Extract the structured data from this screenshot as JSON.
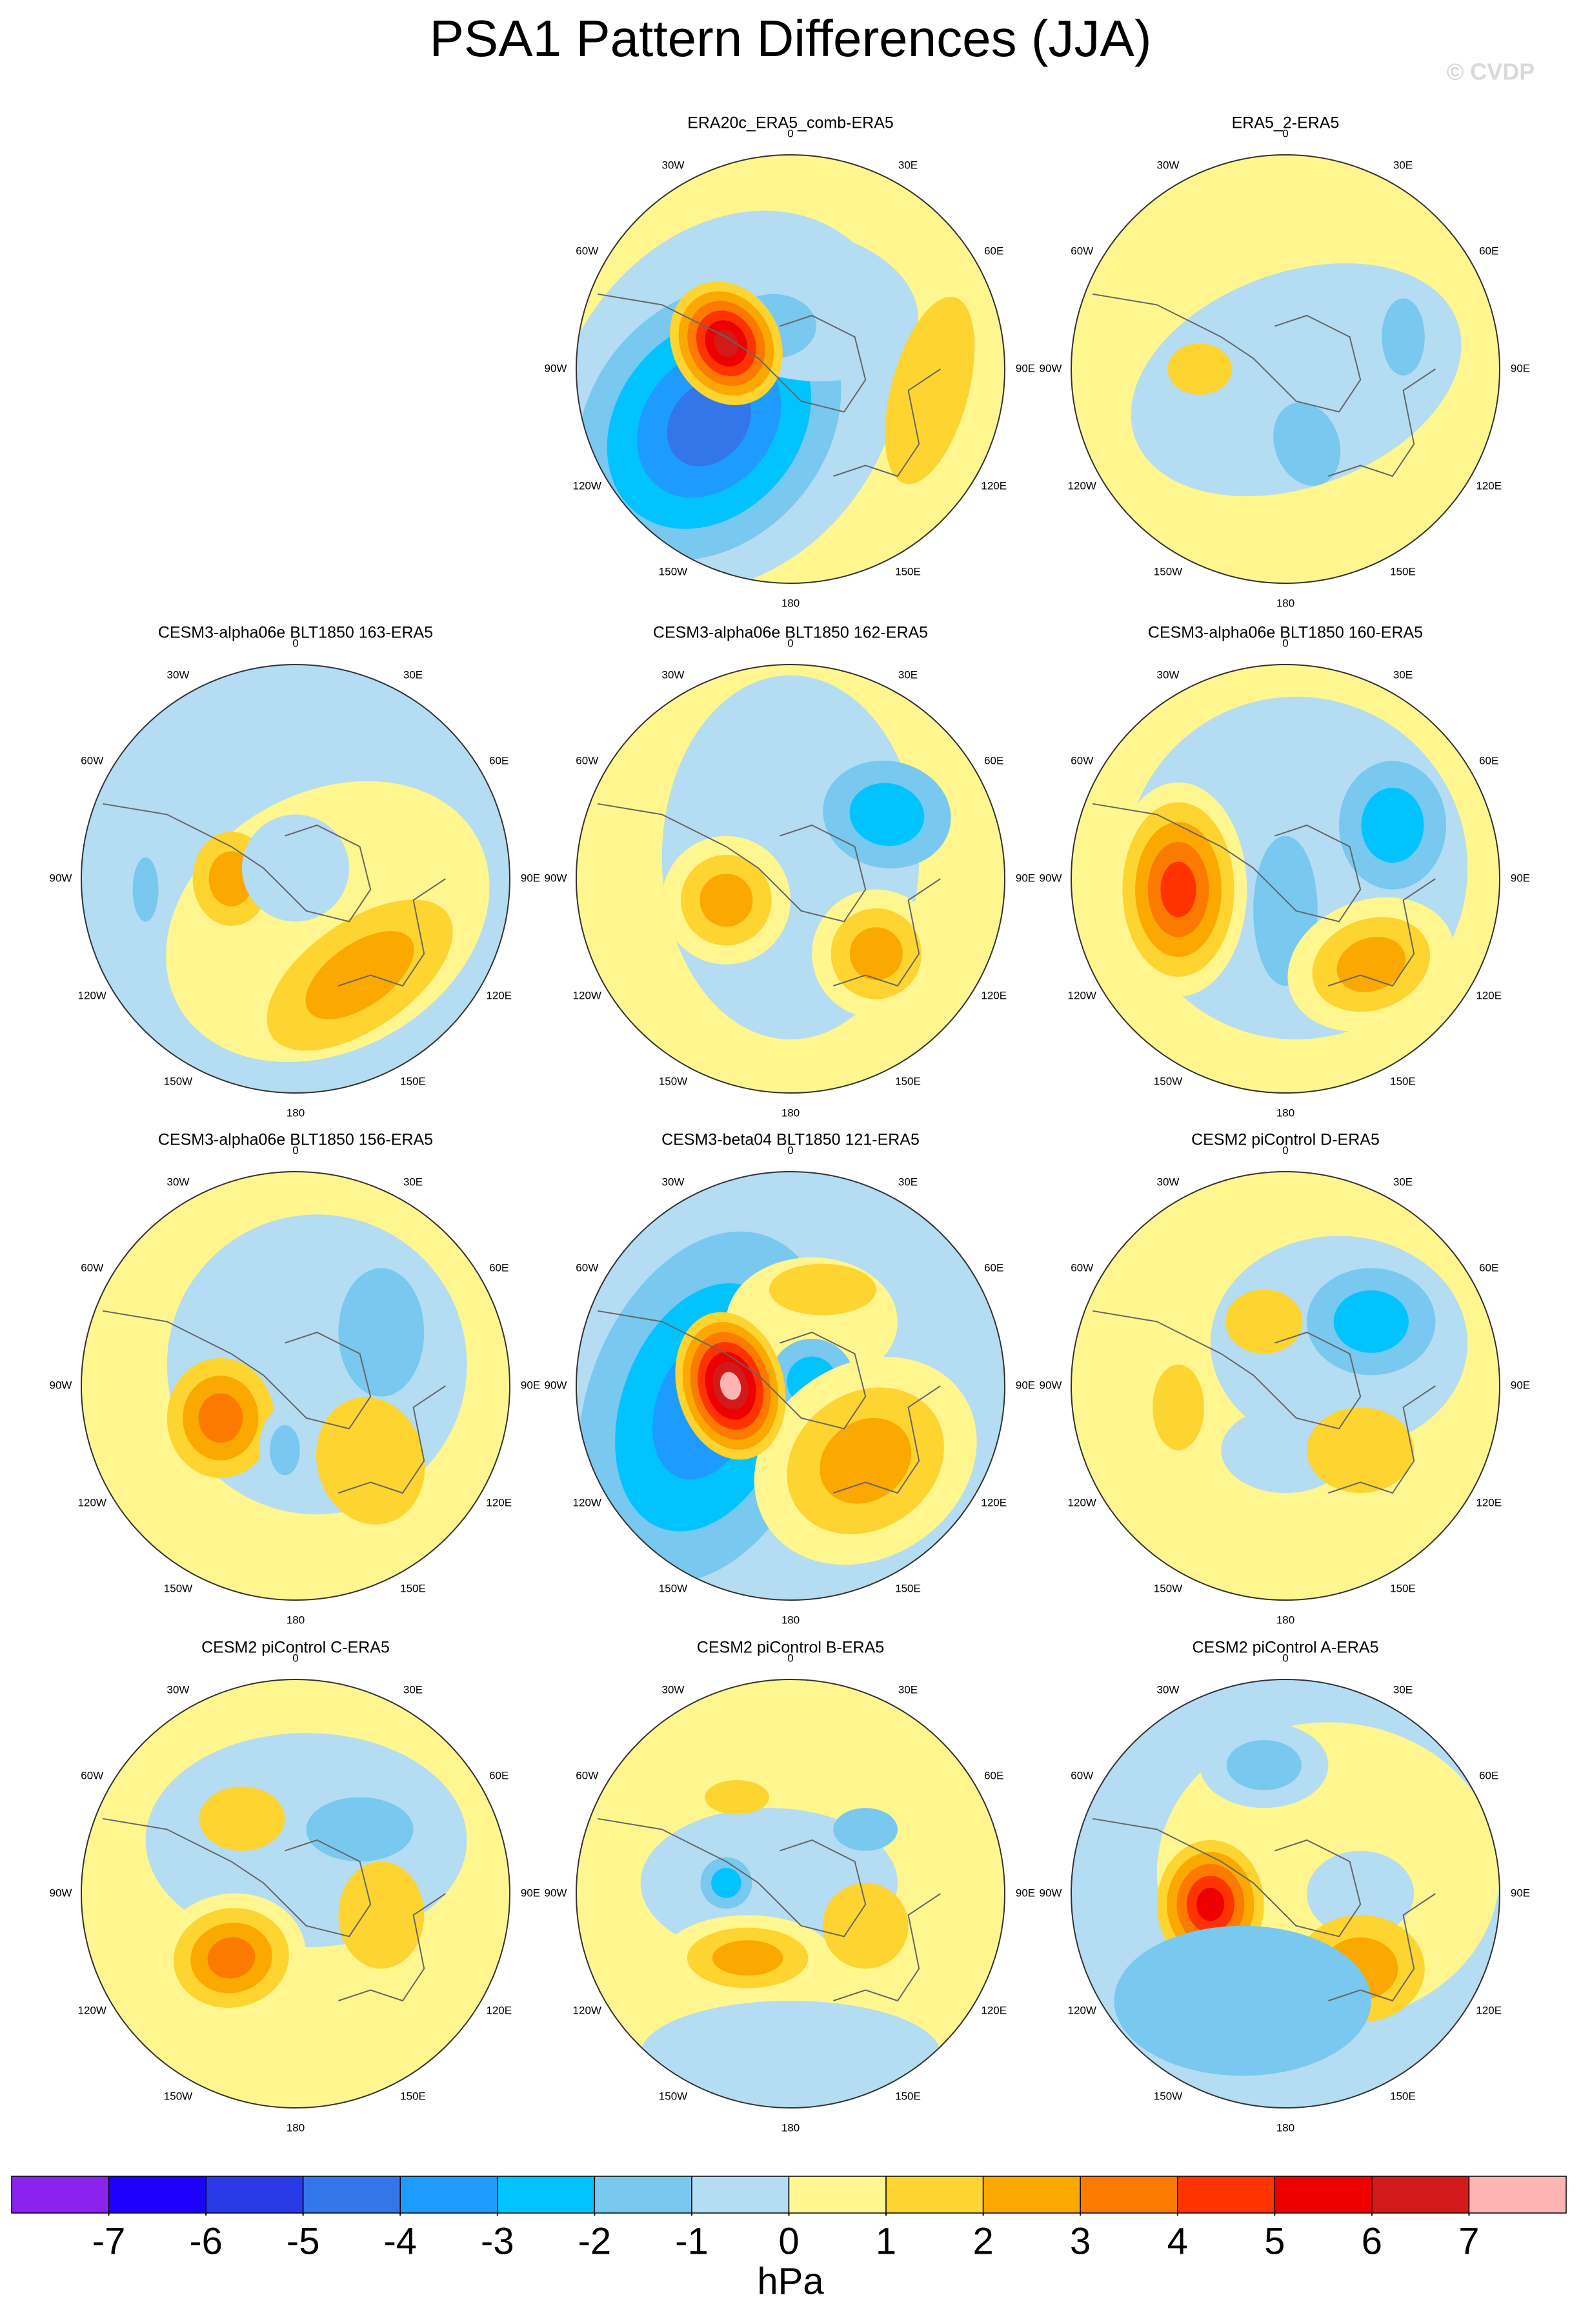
{
  "title": "PSA1 Pattern Differences (JJA)",
  "watermark": "© CVDP",
  "lon_labels": [
    "0",
    "30E",
    "60E",
    "90E",
    "120E",
    "150E",
    "180",
    "150W",
    "120W",
    "90W",
    "60W",
    "30W"
  ],
  "panels": [
    {
      "title": "ERA20c_ERA5_comb-ERA5"
    },
    {
      "title": "ERA5_2-ERA5"
    },
    {
      "title": "CESM3-alpha06e BLT1850 163-ERA5"
    },
    {
      "title": "CESM3-alpha06e BLT1850 162-ERA5"
    },
    {
      "title": "CESM3-alpha06e BLT1850 160-ERA5"
    },
    {
      "title": "CESM3-alpha06e BLT1850 156-ERA5"
    },
    {
      "title": "CESM3-beta04 BLT1850 121-ERA5"
    },
    {
      "title": "CESM2 piControl D-ERA5"
    },
    {
      "title": "CESM2 piControl C-ERA5"
    },
    {
      "title": "CESM2 piControl B-ERA5"
    },
    {
      "title": "CESM2 piControl A-ERA5"
    }
  ],
  "colorbar": {
    "colors": [
      "#8b22ee",
      "#1e00ff",
      "#2a3ae8",
      "#3276ea",
      "#1e9bff",
      "#00c3ff",
      "#78c8f0",
      "#b4dcf2",
      "#fff68f",
      "#fdd430",
      "#fba800",
      "#fd7a00",
      "#fe3300",
      "#ee0000",
      "#d21a1a",
      "#ffb4b4"
    ],
    "ticks": [
      -7,
      -6,
      -5,
      -4,
      -3,
      -2,
      -1,
      0,
      1,
      2,
      3,
      4,
      5,
      6,
      7
    ],
    "label": "hPa"
  }
}
